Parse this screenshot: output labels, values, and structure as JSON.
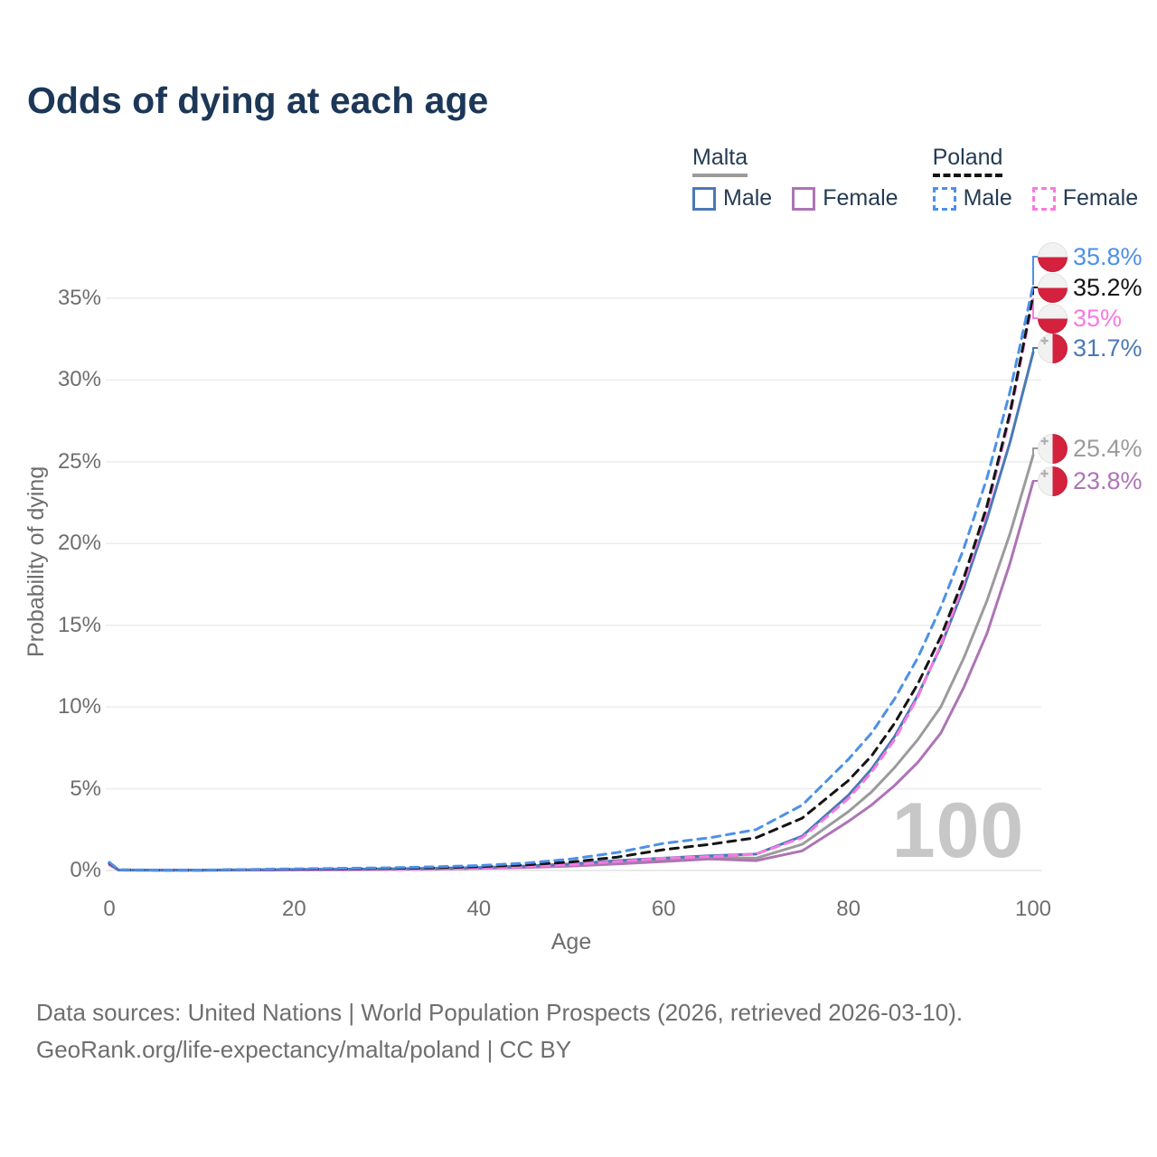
{
  "title": "Odds of dying at each age",
  "legend": {
    "groups": [
      {
        "label": "Malta",
        "series": "malta_total",
        "items": [
          {
            "label": "Male",
            "series": "malta_male"
          },
          {
            "label": "Female",
            "series": "malta_female"
          }
        ]
      },
      {
        "label": "Poland",
        "series": "poland_total",
        "items": [
          {
            "label": "Male",
            "series": "poland_male"
          },
          {
            "label": "Female",
            "series": "poland_female"
          }
        ]
      }
    ]
  },
  "chart_data": {
    "type": "line",
    "title": "Odds of dying at each age",
    "xlabel": "Age",
    "ylabel": "Probability of dying",
    "xlim": [
      0,
      100
    ],
    "ylim": [
      0,
      37
    ],
    "grid": "horizontal",
    "legend_position": "top-right",
    "watermark": "100",
    "x_tick_values": [
      0,
      20,
      40,
      60,
      80,
      100
    ],
    "x_ticks": [
      "0",
      "20",
      "40",
      "60",
      "80",
      "100"
    ],
    "y_tick_values": [
      0,
      5,
      10,
      15,
      20,
      25,
      30,
      35
    ],
    "y_ticks": [
      "0%",
      "5%",
      "10%",
      "15%",
      "20%",
      "25%",
      "30%",
      "35%"
    ],
    "x": [
      0,
      1,
      5,
      10,
      15,
      20,
      25,
      30,
      35,
      40,
      45,
      50,
      55,
      60,
      65,
      70,
      75,
      80,
      82.5,
      85,
      87.5,
      90,
      92.5,
      95,
      97.5,
      100
    ],
    "series": [
      {
        "id": "malta_total",
        "name": "Malta Total",
        "country": "malta",
        "color": "#9b9b9b",
        "dashed": false,
        "end_label": "25.4%",
        "values": [
          0.4,
          0.03,
          0.02,
          0.02,
          0.03,
          0.05,
          0.07,
          0.09,
          0.11,
          0.15,
          0.22,
          0.33,
          0.5,
          0.7,
          0.8,
          0.75,
          1.6,
          3.6,
          4.8,
          6.3,
          8.0,
          10.0,
          13.0,
          16.5,
          20.6,
          25.4
        ]
      },
      {
        "id": "malta_female",
        "name": "Malta Female",
        "country": "malta",
        "color": "#ad74b5",
        "dashed": false,
        "end_label": "23.8%",
        "values": [
          0.35,
          0.02,
          0.01,
          0.01,
          0.02,
          0.03,
          0.04,
          0.06,
          0.08,
          0.12,
          0.18,
          0.27,
          0.4,
          0.55,
          0.7,
          0.6,
          1.2,
          3.0,
          4.0,
          5.2,
          6.6,
          8.4,
          11.2,
          14.5,
          18.8,
          23.8
        ]
      },
      {
        "id": "malta_male",
        "name": "Malta Male",
        "country": "malta",
        "color": "#4a79b5",
        "dashed": false,
        "end_label": "31.7%",
        "values": [
          0.45,
          0.03,
          0.02,
          0.02,
          0.04,
          0.06,
          0.08,
          0.1,
          0.13,
          0.18,
          0.27,
          0.4,
          0.6,
          0.75,
          0.9,
          1.0,
          2.1,
          4.6,
          6.2,
          8.2,
          10.7,
          13.7,
          17.3,
          21.5,
          26.2,
          31.7
        ]
      },
      {
        "id": "poland_female",
        "name": "Poland Female",
        "country": "poland",
        "color": "#f87ae0",
        "dashed": true,
        "end_label": "35%",
        "values": [
          0.4,
          0.03,
          0.02,
          0.02,
          0.03,
          0.04,
          0.05,
          0.07,
          0.1,
          0.15,
          0.23,
          0.36,
          0.55,
          0.75,
          0.85,
          1.0,
          2.0,
          4.4,
          6.0,
          8.0,
          10.6,
          13.8,
          17.6,
          22.0,
          27.8,
          35.0
        ]
      },
      {
        "id": "poland_total",
        "name": "Poland Total",
        "country": "poland",
        "color": "#141414",
        "dashed": true,
        "end_label": "35.2%",
        "values": [
          0.45,
          0.04,
          0.02,
          0.02,
          0.05,
          0.08,
          0.1,
          0.12,
          0.16,
          0.23,
          0.34,
          0.52,
          0.82,
          1.27,
          1.6,
          2.0,
          3.2,
          5.5,
          7.0,
          9.0,
          11.4,
          14.3,
          17.9,
          22.3,
          28.0,
          35.2
        ]
      },
      {
        "id": "poland_male",
        "name": "Poland Male",
        "country": "poland",
        "color": "#4d90e8",
        "dashed": true,
        "end_label": "35.8%",
        "values": [
          0.5,
          0.04,
          0.03,
          0.03,
          0.06,
          0.1,
          0.13,
          0.16,
          0.22,
          0.3,
          0.45,
          0.7,
          1.1,
          1.66,
          2.0,
          2.5,
          4.0,
          6.8,
          8.4,
          10.5,
          13.0,
          16.1,
          19.7,
          24.0,
          29.3,
          35.8
        ]
      }
    ]
  },
  "icons": {
    "malta_flag": "malta-flag-icon",
    "poland_flag": "poland-flag-icon"
  },
  "colors": {
    "flag_red": "#d4213d",
    "flag_white": "#f2f2f2",
    "title_text": "#1c3757",
    "axis_text": "#6e6e6e",
    "gridline": "#ececec",
    "watermark": "#c7c7c7"
  },
  "footer": {
    "line1": "Data sources: United Nations | World Population Prospects (2026, retrieved 2026-03-10).",
    "line2": "GeoRank.org/life-expectancy/malta/poland | CC BY"
  }
}
